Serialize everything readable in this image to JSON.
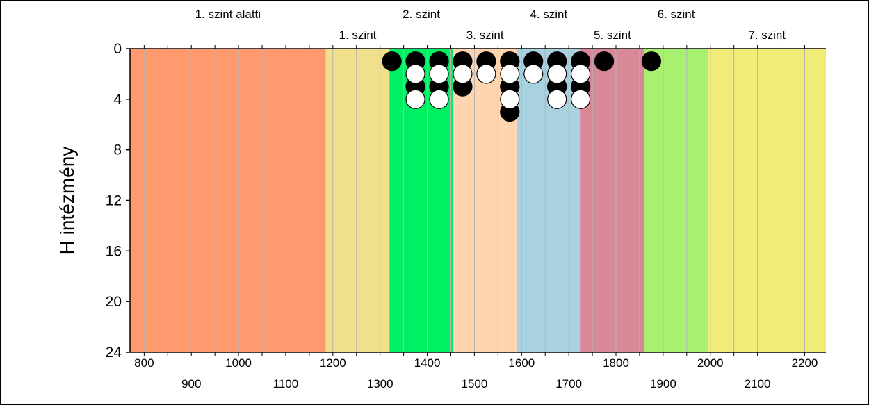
{
  "chart_data": {
    "type": "scatter",
    "title": "",
    "xlabel": "",
    "ylabel": "H intézmény",
    "xlim": [
      770,
      2245
    ],
    "ylim": [
      24,
      0
    ],
    "y_ticks": [
      0,
      4,
      8,
      12,
      16,
      20,
      24
    ],
    "x_ticks_upper_row": [
      800,
      1000,
      1200,
      1400,
      1600,
      1800,
      2000,
      2200
    ],
    "x_ticks_lower_row": [
      900,
      1100,
      1300,
      1500,
      1700,
      1900,
      2100
    ],
    "x_minor_step": 50,
    "grid": true,
    "bands": [
      {
        "label": "1. szint alatti",
        "from": 770,
        "to": 1185,
        "color": "#ff9a6e",
        "label_row": "top"
      },
      {
        "label": "1. szint",
        "from": 1185,
        "to": 1320,
        "color": "#f0e08c",
        "label_row": "bottom"
      },
      {
        "label": "2. szint",
        "from": 1320,
        "to": 1455,
        "color": "#00f064",
        "label_row": "top"
      },
      {
        "label": "3. szint",
        "from": 1455,
        "to": 1590,
        "color": "#ffd5b0",
        "label_row": "bottom"
      },
      {
        "label": "4. szint",
        "from": 1590,
        "to": 1725,
        "color": "#a8d2e0",
        "label_row": "top"
      },
      {
        "label": "5. szint",
        "from": 1725,
        "to": 1860,
        "color": "#d98898",
        "label_row": "bottom"
      },
      {
        "label": "6. szint",
        "from": 1860,
        "to": 1995,
        "color": "#a8f070",
        "label_row": "top"
      },
      {
        "label": "7. szint",
        "from": 1995,
        "to": 2245,
        "color": "#f0ec78",
        "label_row": "bottom"
      }
    ],
    "series": [
      {
        "marker_color": "#000000",
        "points": [
          {
            "x": 1325,
            "y": 1
          },
          {
            "x": 1375,
            "y": 1
          },
          {
            "x": 1375,
            "y": 3
          },
          {
            "x": 1425,
            "y": 1
          },
          {
            "x": 1425,
            "y": 3
          },
          {
            "x": 1475,
            "y": 1
          },
          {
            "x": 1475,
            "y": 3
          },
          {
            "x": 1525,
            "y": 1
          },
          {
            "x": 1575,
            "y": 1
          },
          {
            "x": 1575,
            "y": 3
          },
          {
            "x": 1575,
            "y": 5
          },
          {
            "x": 1625,
            "y": 1
          },
          {
            "x": 1675,
            "y": 1
          },
          {
            "x": 1675,
            "y": 3
          },
          {
            "x": 1725,
            "y": 1
          },
          {
            "x": 1725,
            "y": 3
          },
          {
            "x": 1775,
            "y": 1
          },
          {
            "x": 1875,
            "y": 1
          }
        ]
      },
      {
        "marker_color": "#ffffff",
        "points": [
          {
            "x": 1375,
            "y": 2
          },
          {
            "x": 1375,
            "y": 4
          },
          {
            "x": 1425,
            "y": 2
          },
          {
            "x": 1425,
            "y": 4
          },
          {
            "x": 1475,
            "y": 2
          },
          {
            "x": 1525,
            "y": 2
          },
          {
            "x": 1575,
            "y": 2
          },
          {
            "x": 1575,
            "y": 4
          },
          {
            "x": 1625,
            "y": 2
          },
          {
            "x": 1675,
            "y": 2
          },
          {
            "x": 1675,
            "y": 4
          },
          {
            "x": 1725,
            "y": 2
          },
          {
            "x": 1725,
            "y": 4
          }
        ]
      }
    ]
  }
}
